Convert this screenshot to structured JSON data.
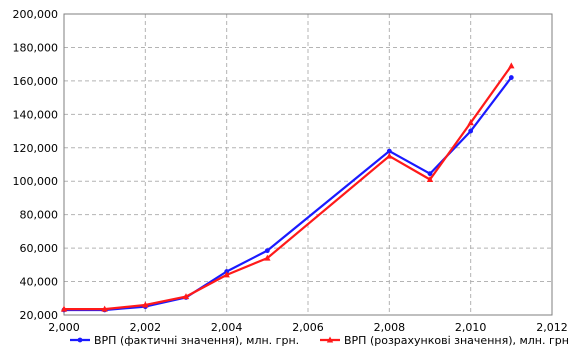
{
  "chart_data": {
    "type": "line",
    "title": "",
    "xlabel": "",
    "ylabel": "",
    "xlim": [
      2000,
      2012
    ],
    "ylim": [
      20000,
      200000
    ],
    "x_ticks": [
      2000,
      2002,
      2004,
      2006,
      2008,
      2010,
      2012
    ],
    "x_tick_labels": [
      "2,000",
      "2,002",
      "2,004",
      "2,006",
      "2,008",
      "2,010",
      "2,012"
    ],
    "y_ticks": [
      20000,
      40000,
      60000,
      80000,
      100000,
      120000,
      140000,
      160000,
      180000,
      200000
    ],
    "y_tick_labels": [
      "20,000",
      "40,000",
      "60,000",
      "80,000",
      "100,000",
      "120,000",
      "140,000",
      "160,000",
      "180,000",
      "200,000"
    ],
    "grid": true,
    "legend_position": "bottom",
    "x": [
      2000,
      2001,
      2002,
      2003,
      2004,
      2005,
      2008,
      2009,
      2010,
      2011
    ],
    "series": [
      {
        "name": "ВРП (фактичні значення), млн. грн.",
        "color": "#1a1aff",
        "marker": "circle",
        "values": [
          23000,
          23000,
          25000,
          30500,
          46000,
          58500,
          118000,
          104500,
          130000,
          162000
        ]
      },
      {
        "name": "ВРП (розрахункові значення), млн. грн.",
        "color": "#ff1a1a",
        "marker": "triangle",
        "values": [
          23500,
          23500,
          26000,
          31000,
          44000,
          54000,
          115000,
          101000,
          135000,
          169000
        ]
      }
    ]
  }
}
